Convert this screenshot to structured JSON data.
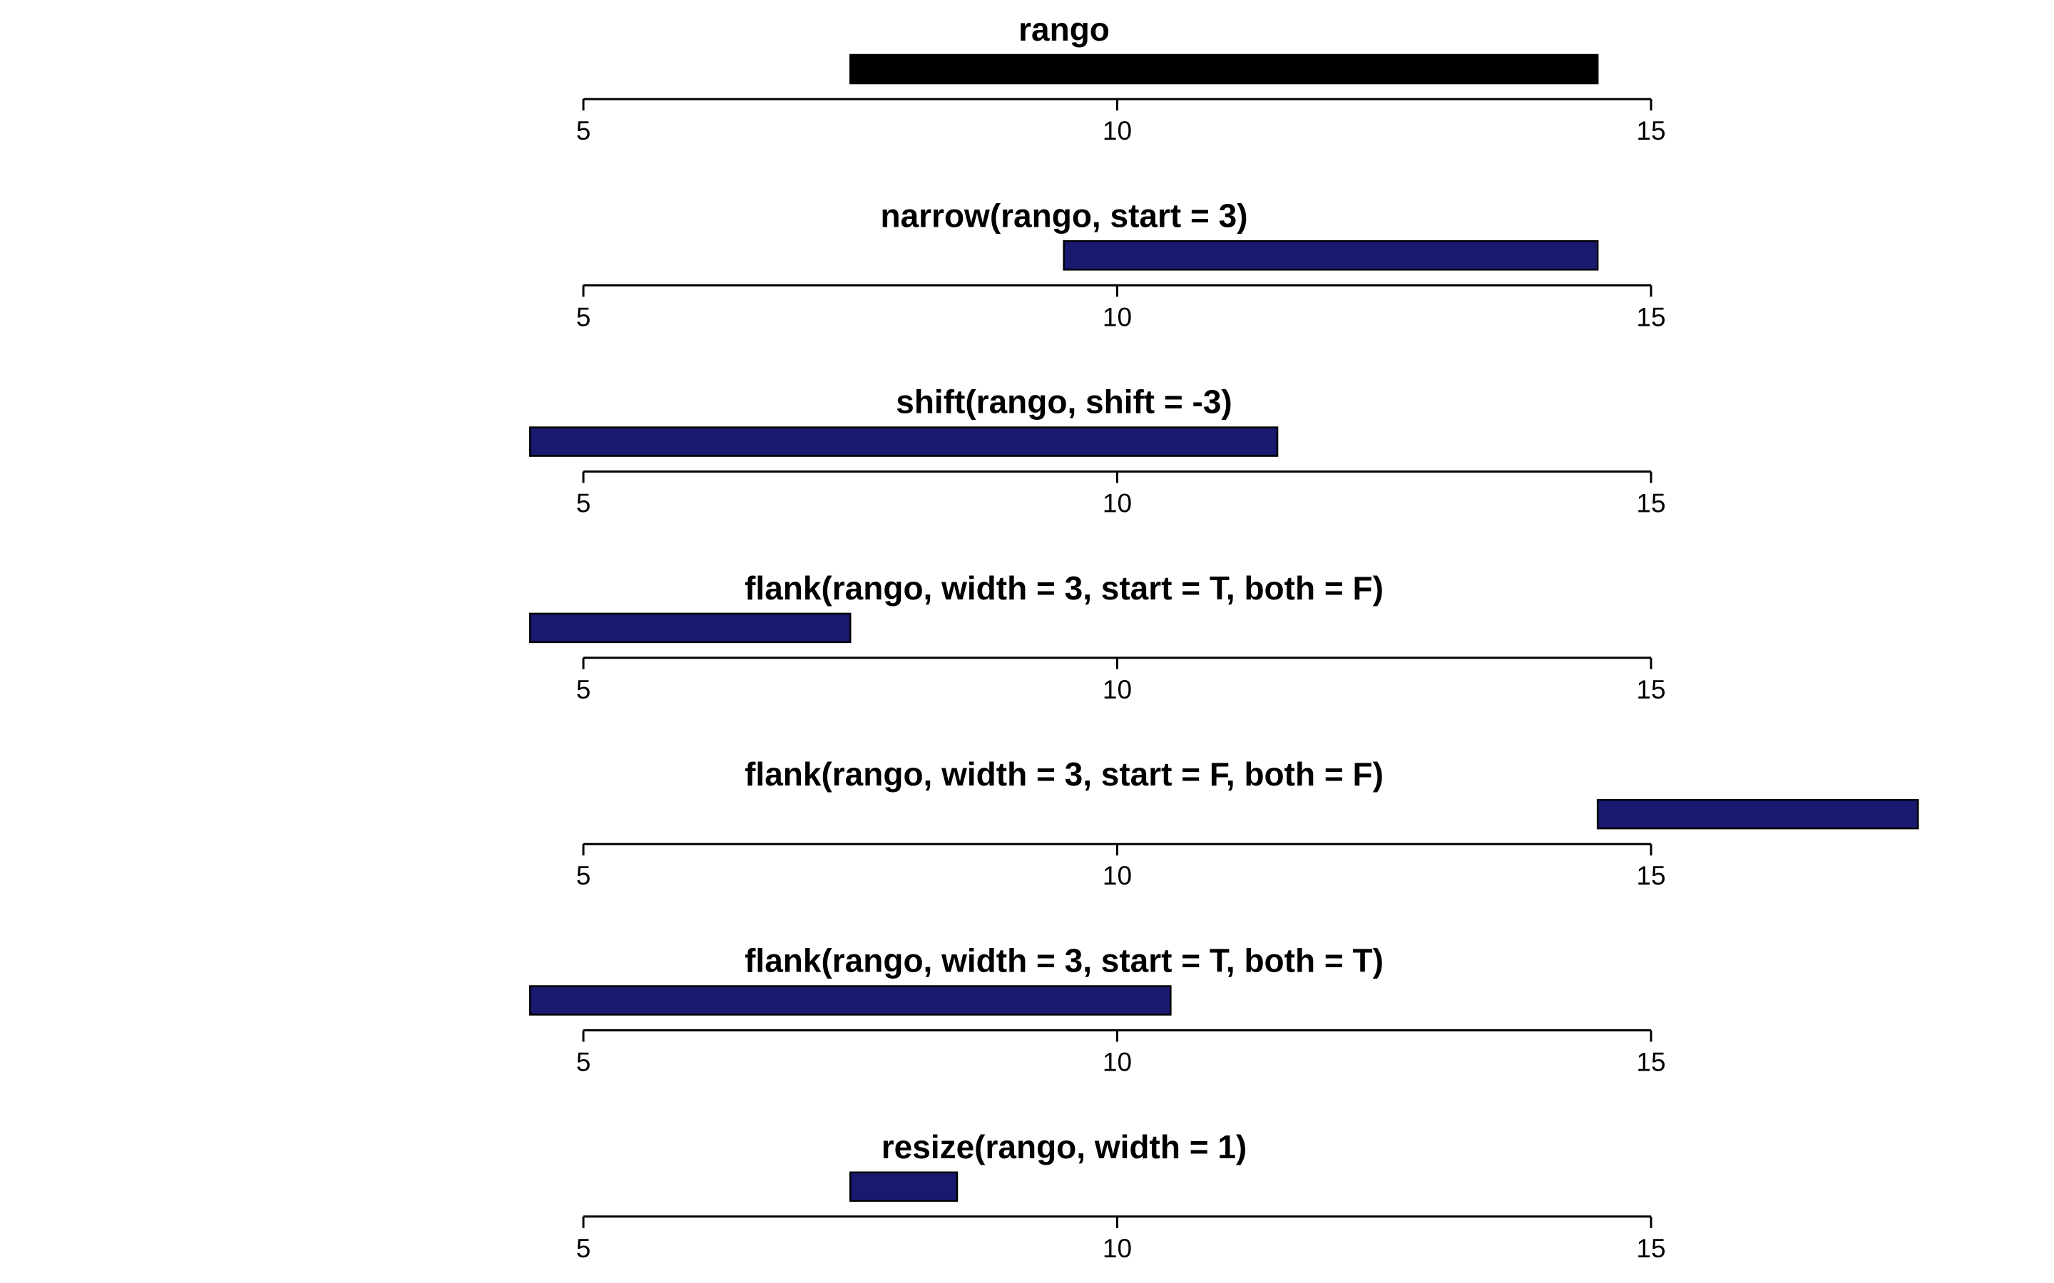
{
  "chart_data": [
    {
      "type": "bar",
      "orientation": "horizontal-interval",
      "title": "rango",
      "xlim": [
        5,
        15
      ],
      "ticks": [
        5,
        10,
        15
      ],
      "tick_labels": [
        "5",
        "10",
        "15"
      ],
      "ranges": [
        {
          "start": 7.5,
          "end": 14.5
        }
      ],
      "color": "#000000"
    },
    {
      "type": "bar",
      "orientation": "horizontal-interval",
      "title": "narrow(rango, start = 3)",
      "xlim": [
        5,
        15
      ],
      "ticks": [
        5,
        10,
        15
      ],
      "tick_labels": [
        "5",
        "10",
        "15"
      ],
      "ranges": [
        {
          "start": 9.5,
          "end": 14.5
        }
      ],
      "color": "#191970"
    },
    {
      "type": "bar",
      "orientation": "horizontal-interval",
      "title": "shift(rango, shift = -3)",
      "xlim": [
        5,
        15
      ],
      "ticks": [
        5,
        10,
        15
      ],
      "tick_labels": [
        "5",
        "10",
        "15"
      ],
      "ranges": [
        {
          "start": 4.5,
          "end": 11.5
        }
      ],
      "color": "#191970"
    },
    {
      "type": "bar",
      "orientation": "horizontal-interval",
      "title": "flank(rango, width = 3, start = T, both = F)",
      "xlim": [
        5,
        15
      ],
      "ticks": [
        5,
        10,
        15
      ],
      "tick_labels": [
        "5",
        "10",
        "15"
      ],
      "ranges": [
        {
          "start": 4.5,
          "end": 7.5
        }
      ],
      "color": "#191970"
    },
    {
      "type": "bar",
      "orientation": "horizontal-interval",
      "title": "flank(rango, width = 3, start = F, both = F)",
      "xlim": [
        5,
        15
      ],
      "ticks": [
        5,
        10,
        15
      ],
      "tick_labels": [
        "5",
        "10",
        "15"
      ],
      "ranges": [
        {
          "start": 14.5,
          "end": 17.5
        }
      ],
      "color": "#191970"
    },
    {
      "type": "bar",
      "orientation": "horizontal-interval",
      "title": "flank(rango, width = 3, start = T, both = T)",
      "xlim": [
        5,
        15
      ],
      "ticks": [
        5,
        10,
        15
      ],
      "tick_labels": [
        "5",
        "10",
        "15"
      ],
      "ranges": [
        {
          "start": 4.5,
          "end": 10.5
        }
      ],
      "color": "#191970"
    },
    {
      "type": "bar",
      "orientation": "horizontal-interval",
      "title": "resize(rango, width = 1)",
      "xlim": [
        5,
        15
      ],
      "ticks": [
        5,
        10,
        15
      ],
      "tick_labels": [
        "5",
        "10",
        "15"
      ],
      "ranges": [
        {
          "start": 7.5,
          "end": 8.5
        }
      ],
      "color": "#191970"
    }
  ]
}
